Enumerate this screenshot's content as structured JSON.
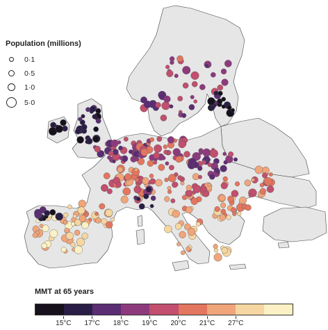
{
  "legend": {
    "population_title": "Population (millions)",
    "population_items": [
      {
        "label": "0·1",
        "size": 0.1
      },
      {
        "label": "0·5",
        "size": 0.5
      },
      {
        "label": "1·0",
        "size": 1.0
      },
      {
        "label": "5·0",
        "size": 5.0
      }
    ]
  },
  "colorbar": {
    "title": "MMT at 65 years",
    "colors": [
      "#16111c",
      "#2a1e46",
      "#5b2d73",
      "#8d3a7d",
      "#c14f6d",
      "#e3765f",
      "#f0a57a",
      "#f6d6a1",
      "#fbf1c4"
    ],
    "tick_labels": [
      "15°C",
      "17°C",
      "18°C",
      "19°C",
      "20°C",
      "21°C",
      "27°C"
    ]
  },
  "map": {
    "land_color": "#e6e6e6",
    "border_color": "#444444"
  }
}
